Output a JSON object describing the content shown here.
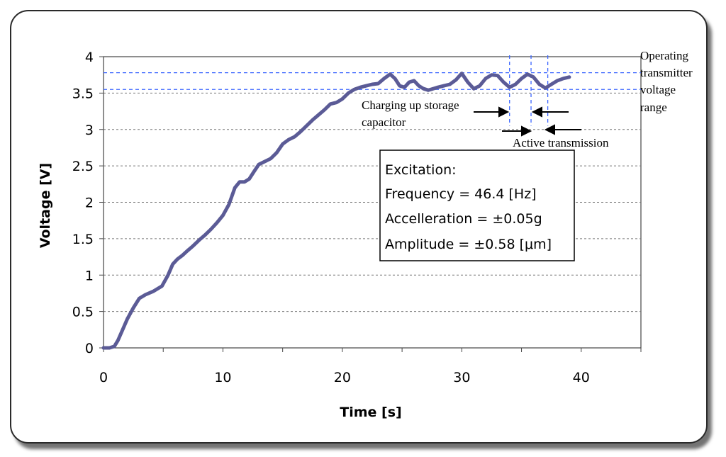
{
  "chart_data": {
    "type": "line",
    "xlabel": "Time [s]",
    "ylabel": "Voltage [V]",
    "xlim": [
      0,
      45
    ],
    "ylim": [
      0,
      4
    ],
    "xticks": [
      0,
      10,
      20,
      30,
      40
    ],
    "xtick_labels": [
      "0",
      "10",
      "20",
      "30",
      "40"
    ],
    "yticks": [
      0,
      0.5,
      1,
      1.5,
      2,
      2.5,
      3,
      3.5,
      4
    ],
    "ytick_labels": [
      "0",
      "0.5",
      "1",
      "1.5",
      "2",
      "2.5",
      "3",
      "3.5",
      "4"
    ],
    "grid": "horizontal dashed",
    "series": [
      {
        "name": "Voltage",
        "color": "#5b5b96",
        "x": [
          0,
          0.5,
          0.9,
          1.2,
          1.6,
          2.0,
          2.5,
          3.0,
          3.5,
          4.2,
          4.9,
          5.4,
          5.8,
          6.2,
          6.6,
          7.0,
          7.5,
          8.0,
          8.5,
          9.0,
          9.5,
          10.0,
          10.5,
          11.0,
          11.4,
          11.8,
          12.2,
          12.6,
          13.0,
          13.5,
          14.0,
          14.5,
          15.0,
          15.5,
          16.0,
          16.5,
          17.0,
          17.5,
          18.0,
          18.5,
          19.0,
          19.5,
          20.0,
          20.5,
          21.0,
          21.5,
          22.0,
          22.5,
          23.0,
          23.5,
          24.0,
          24.4,
          24.8,
          25.2,
          25.6,
          26.0,
          26.4,
          26.8,
          27.2,
          27.6,
          28.0,
          28.5,
          29.0,
          29.5,
          30.0,
          30.5,
          31.0,
          31.5,
          32.0,
          32.5,
          33.0,
          33.5,
          34.0,
          34.5,
          35.0,
          35.5,
          36.0,
          36.5,
          37.0,
          37.5,
          38.0,
          38.5,
          39.0
        ],
        "y": [
          0.0,
          0.0,
          0.02,
          0.1,
          0.25,
          0.4,
          0.55,
          0.68,
          0.73,
          0.78,
          0.85,
          1.0,
          1.15,
          1.22,
          1.27,
          1.33,
          1.4,
          1.48,
          1.55,
          1.63,
          1.72,
          1.82,
          1.97,
          2.2,
          2.28,
          2.28,
          2.32,
          2.42,
          2.52,
          2.56,
          2.6,
          2.68,
          2.8,
          2.86,
          2.9,
          2.97,
          3.05,
          3.13,
          3.2,
          3.27,
          3.35,
          3.37,
          3.42,
          3.5,
          3.55,
          3.58,
          3.6,
          3.62,
          3.63,
          3.7,
          3.76,
          3.7,
          3.6,
          3.58,
          3.65,
          3.67,
          3.6,
          3.56,
          3.54,
          3.56,
          3.58,
          3.6,
          3.62,
          3.68,
          3.77,
          3.65,
          3.56,
          3.6,
          3.7,
          3.75,
          3.74,
          3.65,
          3.58,
          3.62,
          3.7,
          3.76,
          3.72,
          3.62,
          3.57,
          3.62,
          3.67,
          3.7,
          3.72
        ]
      }
    ],
    "reference_lines": {
      "horizontal": [
        3.55,
        3.78
      ],
      "vertical": [
        34.0,
        35.8,
        37.2
      ],
      "color": "#3b66ff"
    },
    "annotations": [
      "Operating transmitter voltage range",
      "Charging up storage capacitor",
      "Active transmission"
    ],
    "info_box": {
      "title": "Excitation:",
      "lines": [
        "Frequency = 46.4 [Hz]",
        "Accelleration = ±0.05g",
        "Amplitude = ±0.58 [μm]"
      ]
    }
  },
  "labels": {
    "operating_1": "Operating",
    "operating_2": "transmitter",
    "operating_3": "voltage",
    "operating_4": "range",
    "charging_1": "Charging up storage",
    "charging_2": "capacitor",
    "active": "Active transmission"
  }
}
